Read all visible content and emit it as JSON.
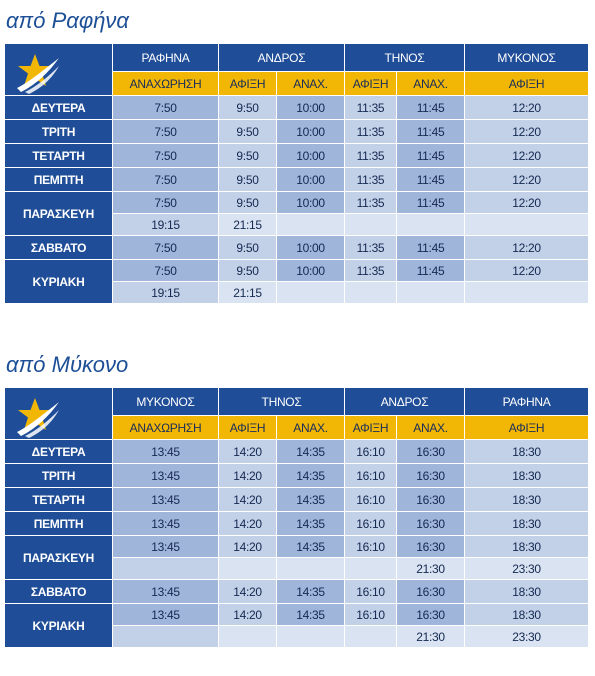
{
  "section1": {
    "title": "από Ραφήνα",
    "headers": [
      "ΡΑΦΗΝΑ",
      "ΑΝΔΡΟΣ",
      "ΤΗΝΟΣ",
      "ΜΥΚΟΝΟΣ"
    ],
    "subheaders": [
      "ΑΝΑΧΩΡΗΣΗ",
      "ΑΦΙΞΗ",
      "ΑΝΑΧ.",
      "ΑΦΙΞΗ",
      "ΑΝΑΧ.",
      "ΑΦΙΞΗ"
    ],
    "days": [
      "ΔΕΥΤΕΡΑ",
      "ΤΡΙΤΗ",
      "ΤΕΤΑΡΤΗ",
      "ΠΕΜΠΤΗ",
      "ΠΑΡΑΣΚΕΥΗ",
      "ΣΑΒΒΑΤΟ",
      "ΚΥΡΙΑΚΗ"
    ],
    "rows": [
      [
        "7:50",
        "9:50",
        "10:00",
        "11:35",
        "11:45",
        "12:20"
      ],
      [
        "7:50",
        "9:50",
        "10:00",
        "11:35",
        "11:45",
        "12:20"
      ],
      [
        "7:50",
        "9:50",
        "10:00",
        "11:35",
        "11:45",
        "12:20"
      ],
      [
        "7:50",
        "9:50",
        "10:00",
        "11:35",
        "11:45",
        "12:20"
      ],
      [
        "7:50",
        "9:50",
        "10:00",
        "11:35",
        "11:45",
        "12:20"
      ],
      [
        "19:15",
        "21:15",
        "",
        "",
        "",
        ""
      ],
      [
        "7:50",
        "9:50",
        "10:00",
        "11:35",
        "11:45",
        "12:20"
      ],
      [
        "7:50",
        "9:50",
        "10:00",
        "11:35",
        "11:45",
        "12:20"
      ],
      [
        "19:15",
        "21:15",
        "",
        "",
        "",
        ""
      ]
    ]
  },
  "section2": {
    "title": "από Μύκονο",
    "headers": [
      "ΜΥΚΟΝΟΣ",
      "ΤΗΝΟΣ",
      "ΑΝΔΡΟΣ",
      "ΡΑΦΗΝΑ"
    ],
    "subheaders": [
      "ΑΝΑΧΩΡΗΣΗ",
      "ΑΦΙΞΗ",
      "ΑΝΑΧ.",
      "ΑΦΙΞΗ",
      "ΑΝΑΧ.",
      "ΑΦΙΞΗ"
    ],
    "days": [
      "ΔΕΥΤΕΡΑ",
      "ΤΡΙΤΗ",
      "ΤΕΤΑΡΤΗ",
      "ΠΕΜΠΤΗ",
      "ΠΑΡΑΣΚΕΥΗ",
      "ΣΑΒΒΑΤΟ",
      "ΚΥΡΙΑΚΗ"
    ],
    "rows": [
      [
        "13:45",
        "14:20",
        "14:35",
        "16:10",
        "16:30",
        "18:30"
      ],
      [
        "13:45",
        "14:20",
        "14:35",
        "16:10",
        "16:30",
        "18:30"
      ],
      [
        "13:45",
        "14:20",
        "14:35",
        "16:10",
        "16:30",
        "18:30"
      ],
      [
        "13:45",
        "14:20",
        "14:35",
        "16:10",
        "16:30",
        "18:30"
      ],
      [
        "13:45",
        "14:20",
        "14:35",
        "16:10",
        "16:30",
        "18:30"
      ],
      [
        "",
        "",
        "",
        "",
        "21:30",
        "23:30"
      ],
      [
        "13:45",
        "14:20",
        "14:35",
        "16:10",
        "16:30",
        "18:30"
      ],
      [
        "13:45",
        "14:20",
        "14:35",
        "16:10",
        "16:30",
        "18:30"
      ],
      [
        "",
        "",
        "",
        "",
        "21:30",
        "23:30"
      ]
    ]
  },
  "colors": {
    "brand_blue": "#1f4d97",
    "accent_yellow": "#f2b705",
    "title_blue": "#1d4f96"
  },
  "logo_icon": "star-swoosh-logo-icon"
}
